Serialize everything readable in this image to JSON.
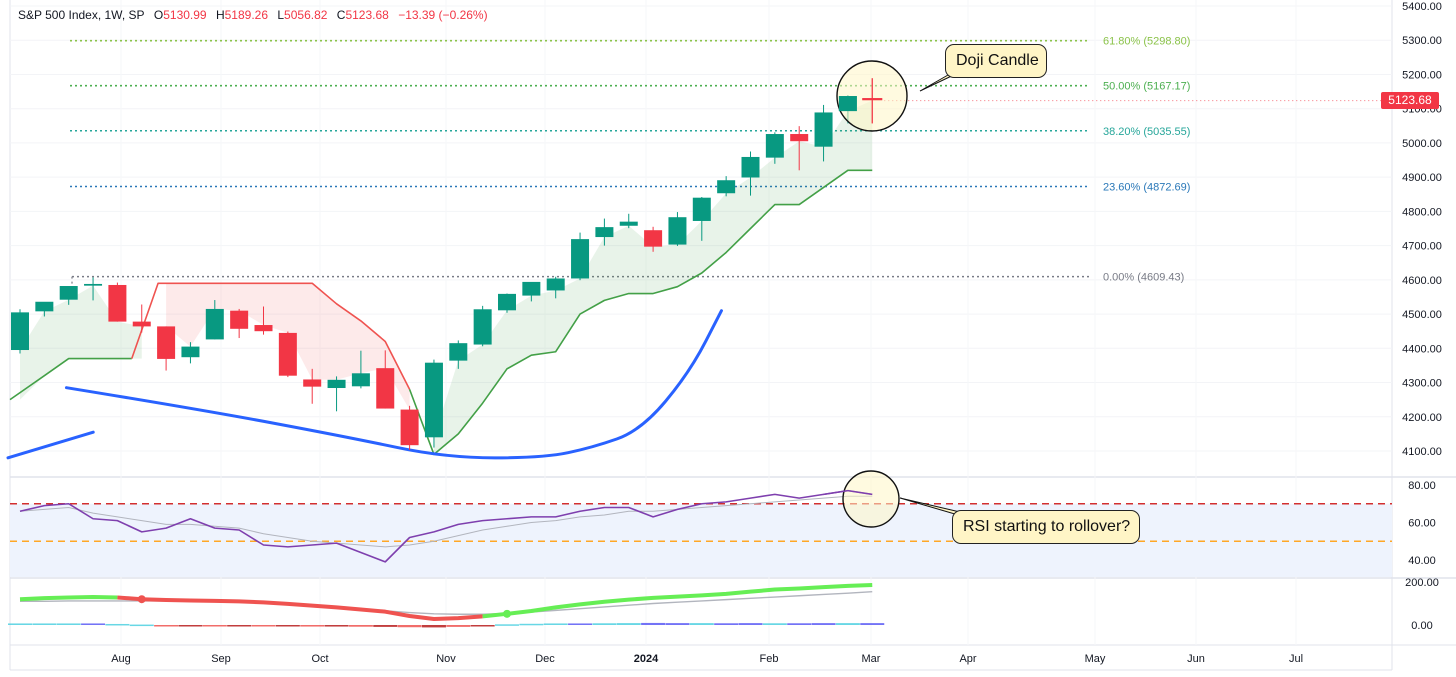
{
  "header": {
    "symbol": "S&P 500 Index, 1W, SP",
    "open_label": "O",
    "open": "5130.99",
    "high_label": "H",
    "high": "5189.26",
    "low_label": "L",
    "low": "5056.82",
    "close_label": "C",
    "close": "5123.68",
    "change": "−13.39 (−0.26%)"
  },
  "last_price_tag": "5123.68",
  "annotations": {
    "doji": "Doji Candle",
    "rsi": "RSI starting to rollover?"
  },
  "colors": {
    "up": "#089981",
    "down": "#f23645",
    "fib_618": "#8bc34a",
    "fib_50": "#4caf50",
    "fib_382": "#26a69a",
    "fib_236": "#2a78b8",
    "fib_0": "#787b86",
    "trail_up": "#43a047",
    "trail_down": "#ef5350",
    "arc": "#2962ff",
    "rsi": "#7e3fae",
    "rsi_ma": "#b2b5be",
    "rsi_upper": "#d32f2f",
    "rsi_lower": "#ffa726",
    "hist_pos": "#4dd0e1",
    "hist_pos_strong": "#5b5bf5",
    "hist_neg": "#ef5350",
    "hist_neg_dark": "#b71c1c",
    "osc_up": "#66ee55",
    "osc_down": "#ef5350"
  },
  "chart_data": [
    {
      "type": "candlestick",
      "title": "S&P 500 Index, 1W, SP",
      "ylim": [
        4080,
        5400
      ],
      "y_ticks": [
        "5400.00",
        "5300.00",
        "5200.00",
        "5100.00",
        "5000.00",
        "4900.00",
        "4800.00",
        "4700.00",
        "4600.00",
        "4500.00",
        "4400.00",
        "4300.00",
        "4200.00",
        "4100.00"
      ],
      "x_ticks": [
        "Aug",
        "Sep",
        "Oct",
        "Nov",
        "Dec",
        "2024",
        "Feb",
        "Mar",
        "Apr",
        "May",
        "Jun",
        "Jul"
      ],
      "candles": [
        {
          "date": "2023-07-03",
          "o": 4395,
          "h": 4514,
          "l": 4385,
          "c": 4505
        },
        {
          "date": "2023-07-10",
          "o": 4508,
          "h": 4533,
          "l": 4493,
          "c": 4536
        },
        {
          "date": "2023-07-17",
          "o": 4542,
          "h": 4580,
          "l": 4527,
          "c": 4582
        },
        {
          "date": "2023-07-24",
          "o": 4583,
          "h": 4607,
          "l": 4540,
          "c": 4588
        },
        {
          "date": "2023-07-31",
          "o": 4585,
          "h": 4592,
          "l": 4478,
          "c": 4478
        },
        {
          "date": "2023-08-07",
          "o": 4478,
          "h": 4528,
          "l": 4446,
          "c": 4464
        },
        {
          "date": "2023-08-14",
          "o": 4464,
          "h": 4464,
          "l": 4335,
          "c": 4369
        },
        {
          "date": "2023-08-21",
          "o": 4374,
          "h": 4418,
          "l": 4356,
          "c": 4405
        },
        {
          "date": "2023-08-28",
          "o": 4426,
          "h": 4541,
          "l": 4426,
          "c": 4515
        },
        {
          "date": "2023-09-04",
          "o": 4510,
          "h": 4515,
          "l": 4430,
          "c": 4457
        },
        {
          "date": "2023-09-11",
          "o": 4468,
          "h": 4522,
          "l": 4440,
          "c": 4450
        },
        {
          "date": "2023-09-18",
          "o": 4445,
          "h": 4449,
          "l": 4316,
          "c": 4320
        },
        {
          "date": "2023-09-25",
          "o": 4309,
          "h": 4340,
          "l": 4238,
          "c": 4288
        },
        {
          "date": "2023-10-02",
          "o": 4284,
          "h": 4318,
          "l": 4216,
          "c": 4308
        },
        {
          "date": "2023-10-09",
          "o": 4289,
          "h": 4393,
          "l": 4283,
          "c": 4327
        },
        {
          "date": "2023-10-16",
          "o": 4342,
          "h": 4394,
          "l": 4224,
          "c": 4224
        },
        {
          "date": "2023-10-23",
          "o": 4221,
          "h": 4232,
          "l": 4103,
          "c": 4117
        },
        {
          "date": "2023-10-30",
          "o": 4140,
          "h": 4367,
          "l": 4110,
          "c": 4358
        },
        {
          "date": "2023-11-06",
          "o": 4364,
          "h": 4423,
          "l": 4340,
          "c": 4415
        },
        {
          "date": "2023-11-13",
          "o": 4411,
          "h": 4524,
          "l": 4406,
          "c": 4514
        },
        {
          "date": "2023-11-20",
          "o": 4511,
          "h": 4560,
          "l": 4504,
          "c": 4559
        },
        {
          "date": "2023-11-27",
          "o": 4554,
          "h": 4587,
          "l": 4537,
          "c": 4594
        },
        {
          "date": "2023-12-04",
          "o": 4569,
          "h": 4609,
          "l": 4546,
          "c": 4604
        },
        {
          "date": "2023-12-11",
          "o": 4604,
          "h": 4738,
          "l": 4599,
          "c": 4719
        },
        {
          "date": "2023-12-18",
          "o": 4725,
          "h": 4779,
          "l": 4700,
          "c": 4754
        },
        {
          "date": "2023-12-25",
          "o": 4758,
          "h": 4793,
          "l": 4751,
          "c": 4770
        },
        {
          "date": "2024-01-01",
          "o": 4745,
          "h": 4755,
          "l": 4682,
          "c": 4697
        },
        {
          "date": "2024-01-08",
          "o": 4703,
          "h": 4798,
          "l": 4699,
          "c": 4783
        },
        {
          "date": "2024-01-15",
          "o": 4772,
          "h": 4842,
          "l": 4714,
          "c": 4840
        },
        {
          "date": "2024-01-22",
          "o": 4853,
          "h": 4903,
          "l": 4844,
          "c": 4891
        },
        {
          "date": "2024-01-29",
          "o": 4899,
          "h": 4975,
          "l": 4846,
          "c": 4959
        },
        {
          "date": "2024-02-05",
          "o": 4957,
          "h": 5031,
          "l": 4939,
          "c": 5026
        },
        {
          "date": "2024-02-12",
          "o": 5026,
          "h": 5049,
          "l": 4920,
          "c": 5005
        },
        {
          "date": "2024-02-19",
          "o": 4989,
          "h": 5111,
          "l": 4946,
          "c": 5089
        },
        {
          "date": "2024-02-26",
          "o": 5093,
          "h": 5140,
          "l": 5057,
          "c": 5137
        },
        {
          "date": "2024-03-04",
          "o": 5131,
          "h": 5189,
          "l": 5057,
          "c": 5124
        }
      ],
      "trailing_stop": [
        4250,
        4320,
        4370,
        4370,
        4370,
        4370,
        4590,
        4590,
        4590,
        4590,
        4590,
        4590,
        4590,
        4530,
        4480,
        4420,
        4280,
        4090,
        4150,
        4240,
        4340,
        4380,
        4390,
        4500,
        4540,
        4560,
        4560,
        4580,
        4620,
        4680,
        4750,
        4820,
        4820,
        4870,
        4920,
        4920
      ],
      "arc_series": [
        {
          "name": "",
          "points": [
            [
              0,
              4080
            ],
            [
              3.5,
              4155
            ]
          ]
        },
        {
          "name": "",
          "points": [
            [
              2.4,
              4285
            ],
            [
              8,
              4220
            ],
            [
              14,
              4140
            ],
            [
              18,
              4080
            ],
            [
              22,
              4080
            ],
            [
              24,
              4110
            ],
            [
              26,
              4160
            ],
            [
              28,
              4330
            ],
            [
              29.3,
              4510
            ]
          ]
        }
      ],
      "fibonacci": [
        {
          "level": "61.80%",
          "value": 5298.8,
          "label": "61.80% (5298.80)"
        },
        {
          "level": "50.00%",
          "value": 5167.17,
          "label": "50.00% (5167.17)"
        },
        {
          "level": "38.20%",
          "value": 5035.55,
          "label": "38.20% (5035.55)"
        },
        {
          "level": "23.60%",
          "value": 4872.69,
          "label": "23.60% (4872.69)"
        },
        {
          "level": "0.00%",
          "value": 4609.43,
          "label": "0.00% (4609.43)"
        }
      ],
      "last_price": 5123.68
    },
    {
      "type": "line",
      "title": "",
      "ylim": [
        30,
        85
      ],
      "y_ticks": [
        "80.00",
        "60.00",
        "40.00"
      ],
      "upper_band": 70,
      "lower_band": 50,
      "series": [
        {
          "name": "",
          "values": [
            66,
            69,
            70,
            62,
            61,
            55,
            57,
            62,
            57,
            56,
            48,
            47,
            48,
            49,
            44,
            39,
            52,
            55,
            59,
            61,
            62,
            63,
            63,
            66,
            68,
            68,
            63,
            67,
            70,
            71,
            73,
            75,
            73,
            75,
            77,
            75
          ]
        },
        {
          "name": "",
          "values": [
            66,
            67,
            68,
            65,
            63,
            61,
            59,
            59,
            58,
            57,
            54,
            52,
            50,
            49,
            48,
            47,
            48,
            50,
            53,
            56,
            58,
            60,
            61,
            63,
            64,
            66,
            66,
            67,
            68,
            69,
            70,
            71,
            72,
            73,
            74,
            74
          ]
        }
      ]
    },
    {
      "type": "bar",
      "title": "",
      "ylim": [
        -25,
        215
      ],
      "y_ticks": [
        "200.00",
        "0.00"
      ],
      "histogram": [
        18,
        18,
        18,
        18,
        12,
        5,
        -5,
        -8,
        -8,
        -10,
        -12,
        -14,
        -18,
        -18,
        -20,
        -22,
        -26,
        -28,
        -22,
        -16,
        8,
        14,
        18,
        18,
        20,
        22,
        24,
        22,
        22,
        20,
        22,
        20,
        20,
        22,
        22,
        22
      ],
      "series": [
        {
          "name": "",
          "values": [
            120,
            125,
            128,
            130,
            128,
            120,
            116,
            114,
            112,
            110,
            105,
            98,
            90,
            82,
            72,
            62,
            42,
            28,
            32,
            40,
            52,
            65,
            82,
            96,
            108,
            118,
            126,
            132,
            138,
            145,
            155,
            165,
            170,
            176,
            182,
            186
          ]
        },
        {
          "name": "",
          "values": [
            110,
            110,
            112,
            112,
            112,
            112,
            112,
            110,
            108,
            106,
            102,
            96,
            90,
            82,
            74,
            66,
            58,
            52,
            50,
            50,
            54,
            60,
            68,
            76,
            84,
            92,
            100,
            106,
            112,
            118,
            124,
            130,
            136,
            142,
            148,
            155
          ]
        }
      ]
    }
  ]
}
